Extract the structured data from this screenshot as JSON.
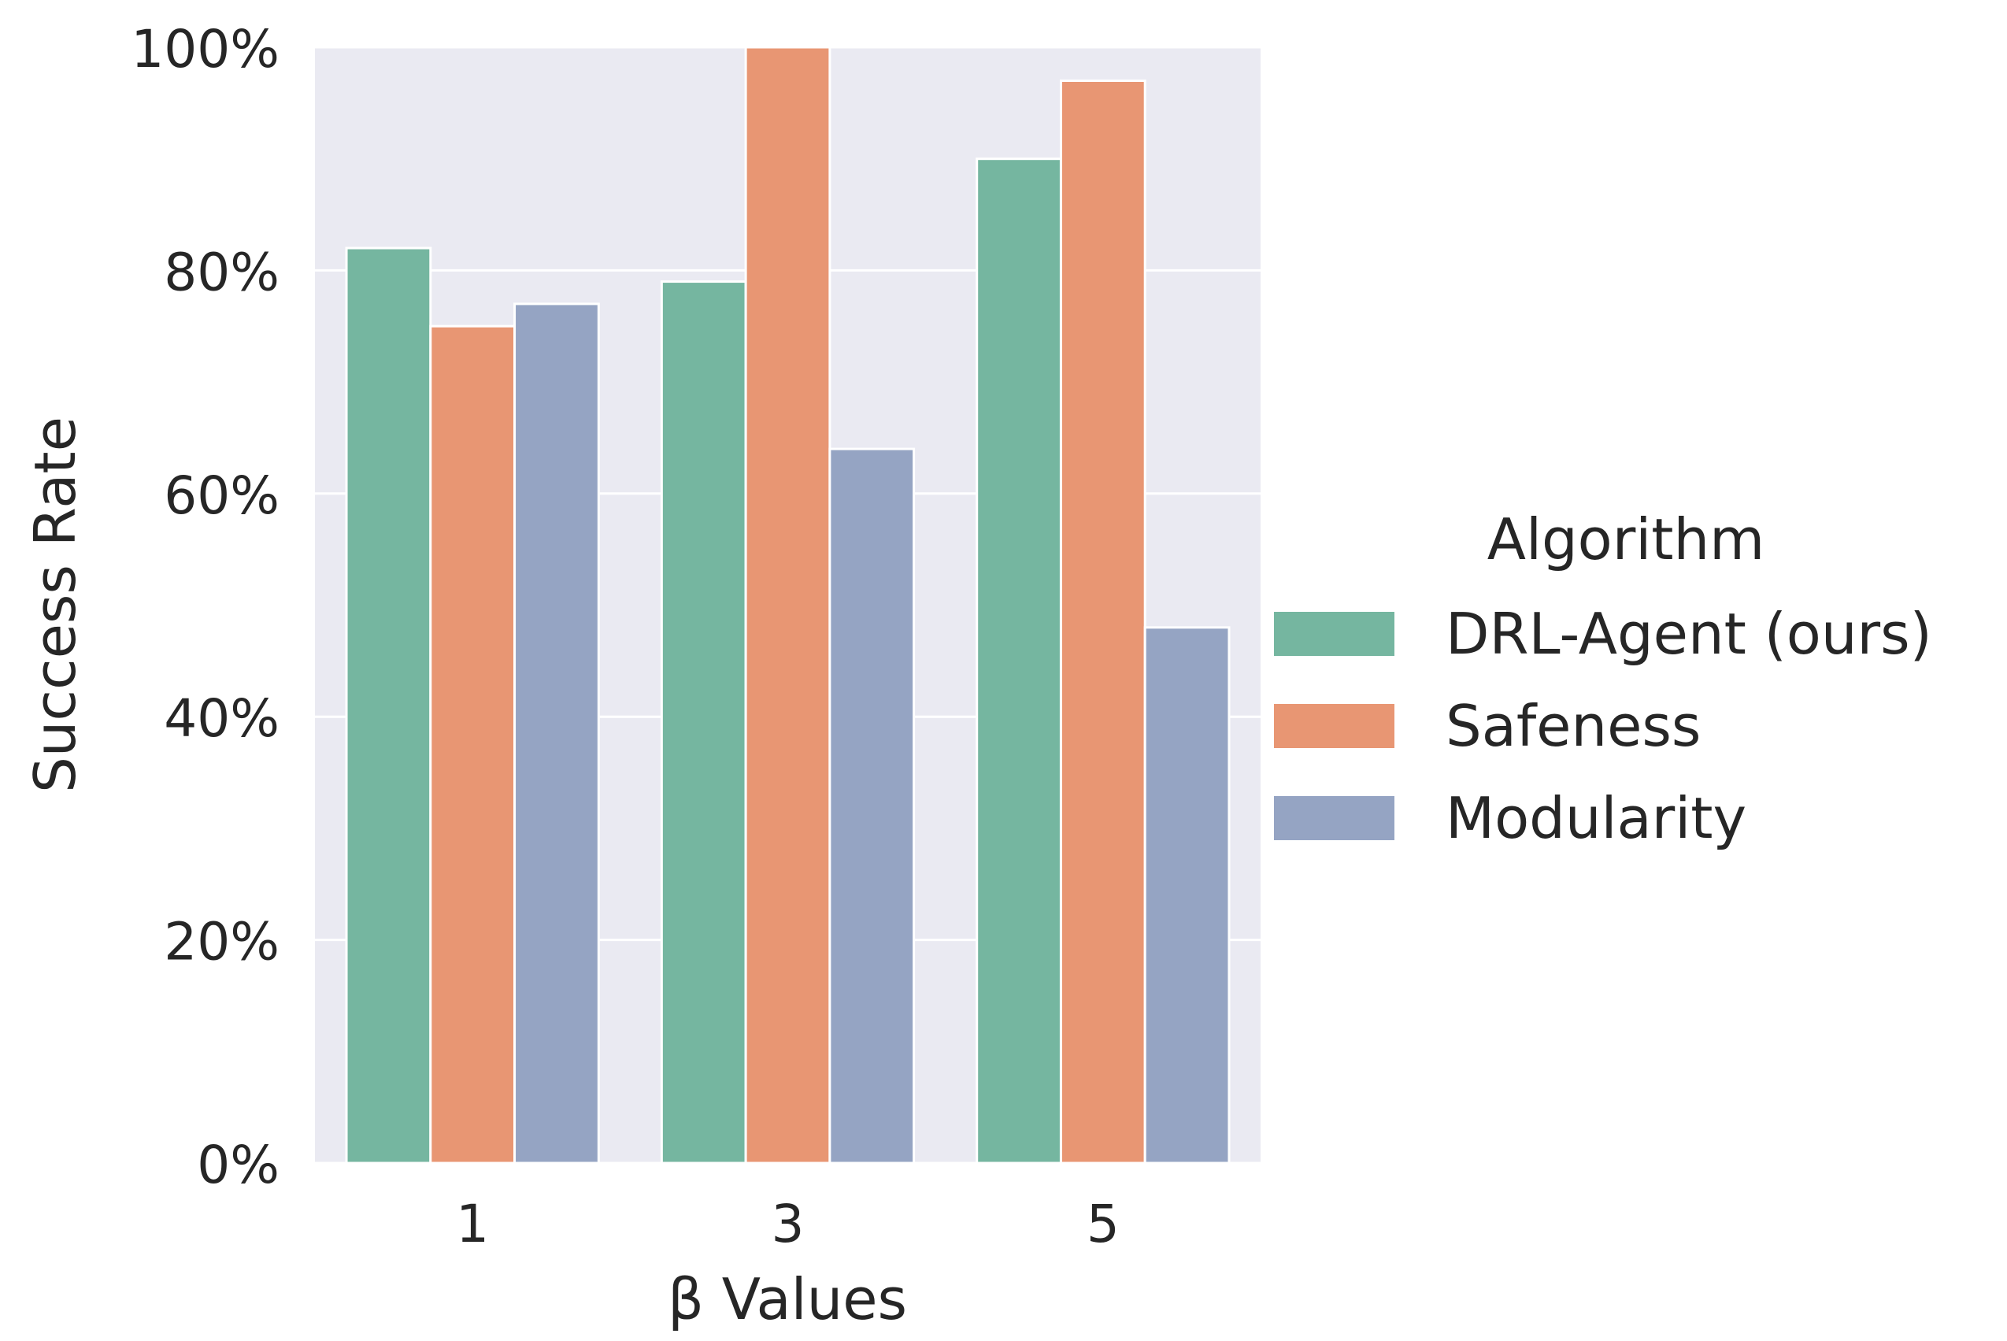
{
  "chart_data": {
    "type": "bar",
    "xlabel": "β Values",
    "ylabel": "Success Rate",
    "categories": [
      "1",
      "3",
      "5"
    ],
    "ylim": [
      0,
      100
    ],
    "yticks": [
      "0%",
      "20%",
      "40%",
      "60%",
      "80%",
      "100%"
    ],
    "ytick_values": [
      0,
      20,
      40,
      60,
      80,
      100
    ],
    "grid": true,
    "legend": {
      "title": "Algorithm",
      "placement": "right"
    },
    "series": [
      {
        "name": "DRL-Agent (ours)",
        "color": "#75b6a0",
        "values": [
          82,
          79,
          90
        ]
      },
      {
        "name": "Safeness",
        "color": "#e89673",
        "values": [
          75,
          100,
          97
        ]
      },
      {
        "name": "Modularity",
        "color": "#95a4c3",
        "values": [
          77,
          64,
          48
        ]
      }
    ]
  }
}
